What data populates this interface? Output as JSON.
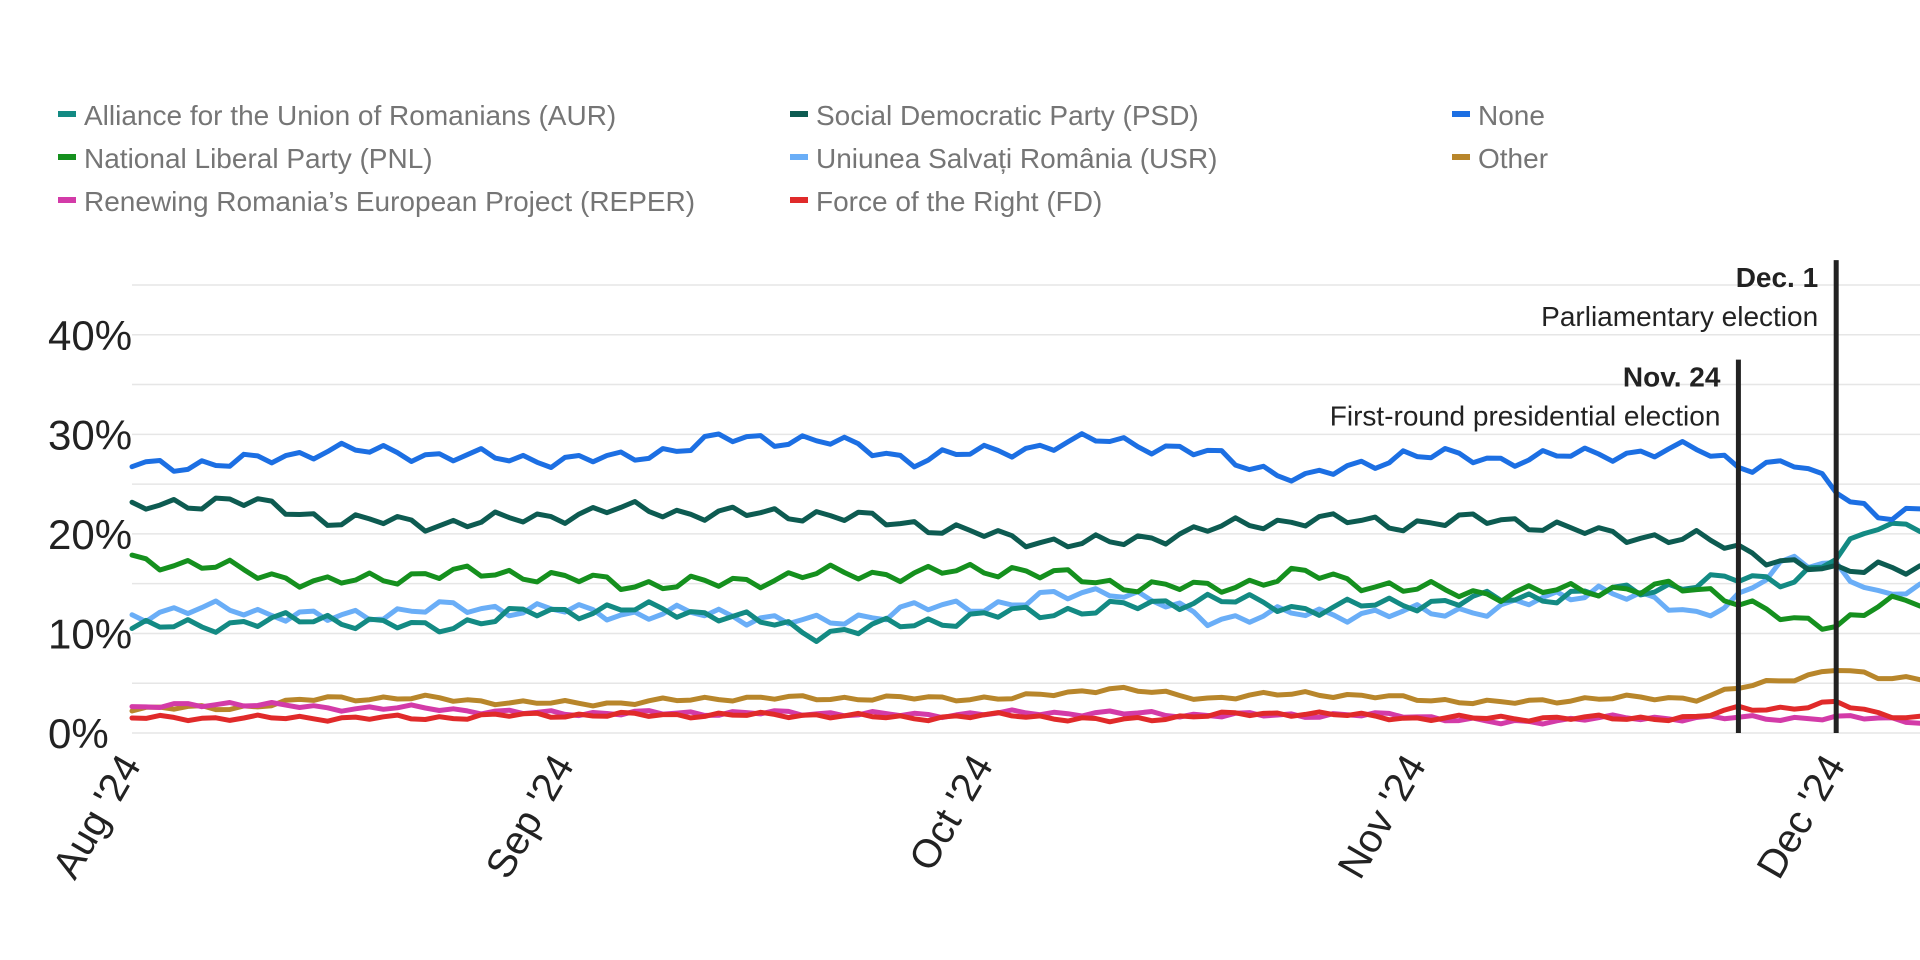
{
  "chart_data": {
    "type": "line",
    "title": "",
    "xlabel": "",
    "ylabel": "",
    "ylim": [
      0,
      45
    ],
    "y_ticks": [
      {
        "value": 0,
        "label": "0%"
      },
      {
        "value": 10,
        "label": "10%"
      },
      {
        "value": 20,
        "label": "20%"
      },
      {
        "value": 30,
        "label": "30%"
      },
      {
        "value": 40,
        "label": "40%"
      }
    ],
    "x_start": "2024-08-01",
    "x_end": "2024-12-07",
    "x_ticks": [
      {
        "date": "2024-08-01",
        "label": "Aug '24"
      },
      {
        "date": "2024-09-01",
        "label": "Sep '24"
      },
      {
        "date": "2024-10-01",
        "label": "Oct '24"
      },
      {
        "date": "2024-11-01",
        "label": "Nov '24"
      },
      {
        "date": "2024-12-01",
        "label": "Dec '24"
      }
    ],
    "grid": true,
    "legend_position": "top",
    "annotations": [
      {
        "date": "2024-11-24",
        "title": "Nov. 24",
        "text": "First-round presidential election",
        "top_value": 37.5
      },
      {
        "date": "2024-12-01",
        "title": "Dec. 1",
        "text": "Parliamentary election",
        "top_value": 47.5
      }
    ],
    "x_dates": [
      "2024-08-01",
      "2024-08-08",
      "2024-08-15",
      "2024-08-22",
      "2024-08-29",
      "2024-09-05",
      "2024-09-12",
      "2024-09-19",
      "2024-09-26",
      "2024-10-03",
      "2024-10-10",
      "2024-10-17",
      "2024-10-24",
      "2024-10-31",
      "2024-11-07",
      "2024-11-14",
      "2024-11-21",
      "2024-11-24",
      "2024-11-28",
      "2024-12-01",
      "2024-12-04",
      "2024-12-07"
    ],
    "series": [
      {
        "name": "Alliance for the Union of Romanians (AUR)",
        "color": "#138a83",
        "values": [
          10.5,
          11,
          11.5,
          10.5,
          12,
          12.5,
          12,
          10,
          11,
          12,
          12.5,
          13.5,
          12.5,
          13,
          13.5,
          14,
          15,
          15.5,
          15.5,
          17.5,
          21,
          21
        ]
      },
      {
        "name": "Social Democratic Party (PSD)",
        "color": "#0d5b51",
        "values": [
          22.5,
          23.5,
          21.5,
          21,
          21.5,
          22.5,
          22,
          22,
          21,
          19.5,
          19,
          20.5,
          21.5,
          21,
          21.5,
          20,
          19.5,
          18.5,
          17,
          16,
          17,
          16.5
        ]
      },
      {
        "name": "None",
        "color": "#1c6fe3",
        "values": [
          27,
          27,
          28.5,
          28,
          27.5,
          27.5,
          29.5,
          29.5,
          27.5,
          28.5,
          29.5,
          28,
          25.5,
          28,
          27.5,
          28,
          28.5,
          27,
          27,
          24.5,
          22,
          22
        ]
      },
      {
        "name": "National Liberal Party (PNL)",
        "color": "#15901e",
        "values": [
          17.5,
          16.5,
          15,
          16,
          16,
          15,
          15,
          16,
          16,
          16.5,
          15,
          14.5,
          16,
          14.5,
          14,
          14.5,
          14.5,
          13.5,
          11,
          11,
          13,
          13
        ]
      },
      {
        "name": "Uniunea Salvați România (USR)",
        "color": "#6aaef7",
        "values": [
          12,
          12.5,
          11.5,
          12.5,
          12.5,
          12,
          12,
          11,
          12.5,
          13,
          14.5,
          11.5,
          12,
          12,
          12.5,
          14.5,
          12,
          13.5,
          17.5,
          17,
          13.5,
          14.5
        ]
      },
      {
        "name": "Other",
        "color": "#b8862b",
        "values": [
          2.5,
          2.5,
          3.5,
          3.5,
          3,
          3,
          3.5,
          3.5,
          3.5,
          3.5,
          4.5,
          3.5,
          4,
          3.5,
          3,
          3.5,
          3.5,
          4.5,
          5.5,
          6.5,
          5.5,
          5.5
        ]
      },
      {
        "name": "Renewing Romania’s European Project (REPER)",
        "color": "#d33ba8",
        "values": [
          2.5,
          3,
          2.5,
          2.5,
          2,
          2,
          2,
          2,
          1.8,
          2,
          2,
          1.8,
          1.8,
          1.8,
          1,
          1.5,
          1.5,
          1.5,
          1.5,
          1.5,
          1.5,
          1.2
        ]
      },
      {
        "name": "Force of the Right (FD)",
        "color": "#e02a2a",
        "values": [
          1.5,
          1.5,
          1.5,
          1.5,
          1.8,
          1.8,
          1.8,
          1.8,
          1.5,
          1.8,
          1.2,
          1.8,
          2,
          1.5,
          1.5,
          1.5,
          1.5,
          2.5,
          2.5,
          3,
          2,
          1.5
        ]
      }
    ]
  }
}
